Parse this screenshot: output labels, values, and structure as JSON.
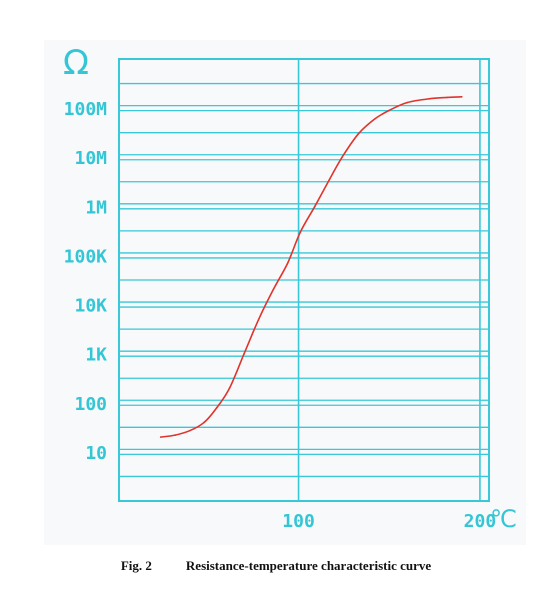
{
  "chart_data": {
    "type": "line",
    "y_unit_symbol": "Ω",
    "x_unit_symbol": "℃",
    "y_scale": "log",
    "grid": true,
    "x_ticks": [
      {
        "value": 100,
        "label": "100"
      },
      {
        "value": 200,
        "label": "200"
      }
    ],
    "y_ticks": [
      {
        "value": 10,
        "label": "10"
      },
      {
        "value": 100,
        "label": "100"
      },
      {
        "value": 1000,
        "label": "1K"
      },
      {
        "value": 10000,
        "label": "10K"
      },
      {
        "value": 100000,
        "label": "100K"
      },
      {
        "value": 1000000,
        "label": "1M"
      },
      {
        "value": 10000000,
        "label": "10M"
      },
      {
        "value": 100000000,
        "label": "100M"
      }
    ],
    "xlim": [
      1,
      205
    ],
    "ylim": [
      1,
      1000000000
    ],
    "series": [
      {
        "color": "#e0342c",
        "points": [
          [
            24,
            20
          ],
          [
            32,
            22
          ],
          [
            40,
            27
          ],
          [
            48,
            40
          ],
          [
            55,
            80
          ],
          [
            62,
            200
          ],
          [
            70,
            1000
          ],
          [
            78,
            5000
          ],
          [
            86,
            20000
          ],
          [
            94,
            70000
          ],
          [
            101,
            300000
          ],
          [
            109,
            1000000
          ],
          [
            117,
            3500000
          ],
          [
            124,
            10000000
          ],
          [
            133,
            30000000
          ],
          [
            142,
            60000000
          ],
          [
            150,
            90000000
          ],
          [
            160,
            130000000
          ],
          [
            172,
            155000000
          ],
          [
            182,
            165000000
          ],
          [
            190,
            170000000
          ]
        ]
      }
    ]
  },
  "caption": {
    "fig_label": "Fig. 2",
    "text": "Resistance-temperature characteristic curve"
  }
}
